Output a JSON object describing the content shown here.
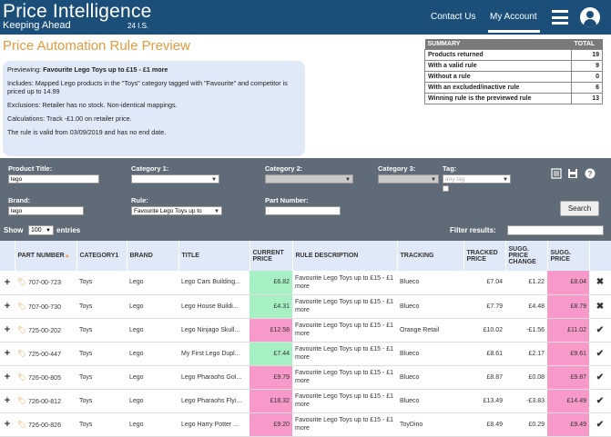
{
  "header": {
    "logo_title": "Price Intelligence",
    "logo_subtitle": "Keeping Ahead",
    "version": "24 I.S.",
    "nav_contact": "Contact Us",
    "nav_account": "My Account"
  },
  "page_title": "Price Automation Rule Preview",
  "preview": {
    "previewing_label": "Previewing: ",
    "previewing_value": "Favourite Lego Toys up to £15 - £1 more",
    "includes": "Includes: Mapped Lego products in the \"Toys\" category tagged with \"Favourite\" and competitor is priced up to 14.99",
    "exclusions": "Exclusions: Retailer has no stock. Non-identical mappings.",
    "calculations": "Calculations: Track -£1.00 on retailer price.",
    "validity": "The rule is valid from 03/09/2019 and has no end date."
  },
  "summary": {
    "header": "SUMMARY",
    "total_header": "TOTAL",
    "rows": [
      {
        "label": "Products returned",
        "value": "19"
      },
      {
        "label": "With a valid rule",
        "value": "9"
      },
      {
        "label": "Without a rule",
        "value": "0"
      },
      {
        "label": "With an excluded/inactive rule",
        "value": "6"
      },
      {
        "label": "Winning rule is the previewed rule",
        "value": "13"
      }
    ]
  },
  "filters": {
    "product_title_label": "Product Title:",
    "product_title_value": "lego",
    "category1_label": "Category 1:",
    "category2_label": "Category 2:",
    "category3_label": "Category 3:",
    "tag_label": "Tag:",
    "tag_placeholder": "any tag",
    "brand_label": "Brand:",
    "brand_value": "lego",
    "rule_label": "Rule:",
    "rule_value": "Favourite Lego Toys up to",
    "part_number_label": "Part Number:",
    "search_button": "Search"
  },
  "table_controls": {
    "show_label": "Show",
    "show_value": "100",
    "entries_label": "entries",
    "filter_label": "Filter results:"
  },
  "columns": [
    "PART NUMBER",
    "CATEGORY1",
    "BRAND",
    "TITLE",
    "CURRENT PRICE",
    "RULE DESCRIPTION",
    "TRACKING",
    "TRACKED PRICE",
    "SUGG. PRICE CHANGE",
    "SUGG. PRICE"
  ],
  "rows": [
    {
      "part": "707-00-723",
      "cat": "Toys",
      "brand": "Lego",
      "title": "Lego Cars Building...",
      "current": "£6.82",
      "current_color": "green",
      "rule": "Favourite Lego Toys up to £15 - £1 more",
      "tracking": "Blueco",
      "tracked": "£7.04",
      "change": "£1.22",
      "change_neg": false,
      "sugg": "£8.04",
      "status": "x"
    },
    {
      "part": "707-00-730",
      "cat": "Toys",
      "brand": "Lego",
      "title": "Lego House Buildi...",
      "current": "£4.31",
      "current_color": "green",
      "rule": "Favourite Lego Toys up to £15 - £1 more",
      "tracking": "Blueco",
      "tracked": "£7.79",
      "change": "£4.48",
      "change_neg": false,
      "sugg": "£8.79",
      "status": "x"
    },
    {
      "part": "725-00-202",
      "cat": "Toys",
      "brand": "Lego",
      "title": "Lego Ninjago Skull...",
      "current": "£12.58",
      "current_color": "pink",
      "rule": "Favourite Lego Toys up to £15 - £1 more",
      "tracking": "Orange Retail",
      "tracked": "£10.02",
      "change": "-£1.56",
      "change_neg": true,
      "sugg": "£11.02",
      "status": "tick"
    },
    {
      "part": "725-00-447",
      "cat": "Toys",
      "brand": "Lego",
      "title": "My First Lego Dupl...",
      "current": "£7.44",
      "current_color": "green",
      "rule": "Favourite Lego Toys up to £15 - £1 more",
      "tracking": "Blueco",
      "tracked": "£8.61",
      "change": "£2.17",
      "change_neg": false,
      "sugg": "£9.61",
      "status": "tick"
    },
    {
      "part": "726-00-805",
      "cat": "Toys",
      "brand": "Lego",
      "title": "Lego Pharaohs Gol...",
      "current": "£9.79",
      "current_color": "pink",
      "rule": "Favourite Lego Toys up to £15 - £1 more",
      "tracking": "Blueco",
      "tracked": "£8.87",
      "change": "£0.08",
      "change_neg": false,
      "sugg": "£9.87",
      "status": "tick"
    },
    {
      "part": "726-00-812",
      "cat": "Toys",
      "brand": "Lego",
      "title": "Lego Pharaohs Flyi...",
      "current": "£18.32",
      "current_color": "pink",
      "rule": "Favourite Lego Toys up to £15 - £1 more",
      "tracking": "Blueco",
      "tracked": "£13.49",
      "change": "-£3.83",
      "change_neg": true,
      "sugg": "£14.49",
      "status": "tick"
    },
    {
      "part": "726-00-826",
      "cat": "Toys",
      "brand": "Lego",
      "title": "Lego Harry Potter ...",
      "current": "£9.20",
      "current_color": "pink",
      "rule": "Favourite Lego Toys up to £15 - £1 more",
      "tracking": "ToyDino",
      "tracked": "£8.49",
      "change": "£0.29",
      "change_neg": false,
      "sugg": "£9.49",
      "status": "tick"
    }
  ]
}
